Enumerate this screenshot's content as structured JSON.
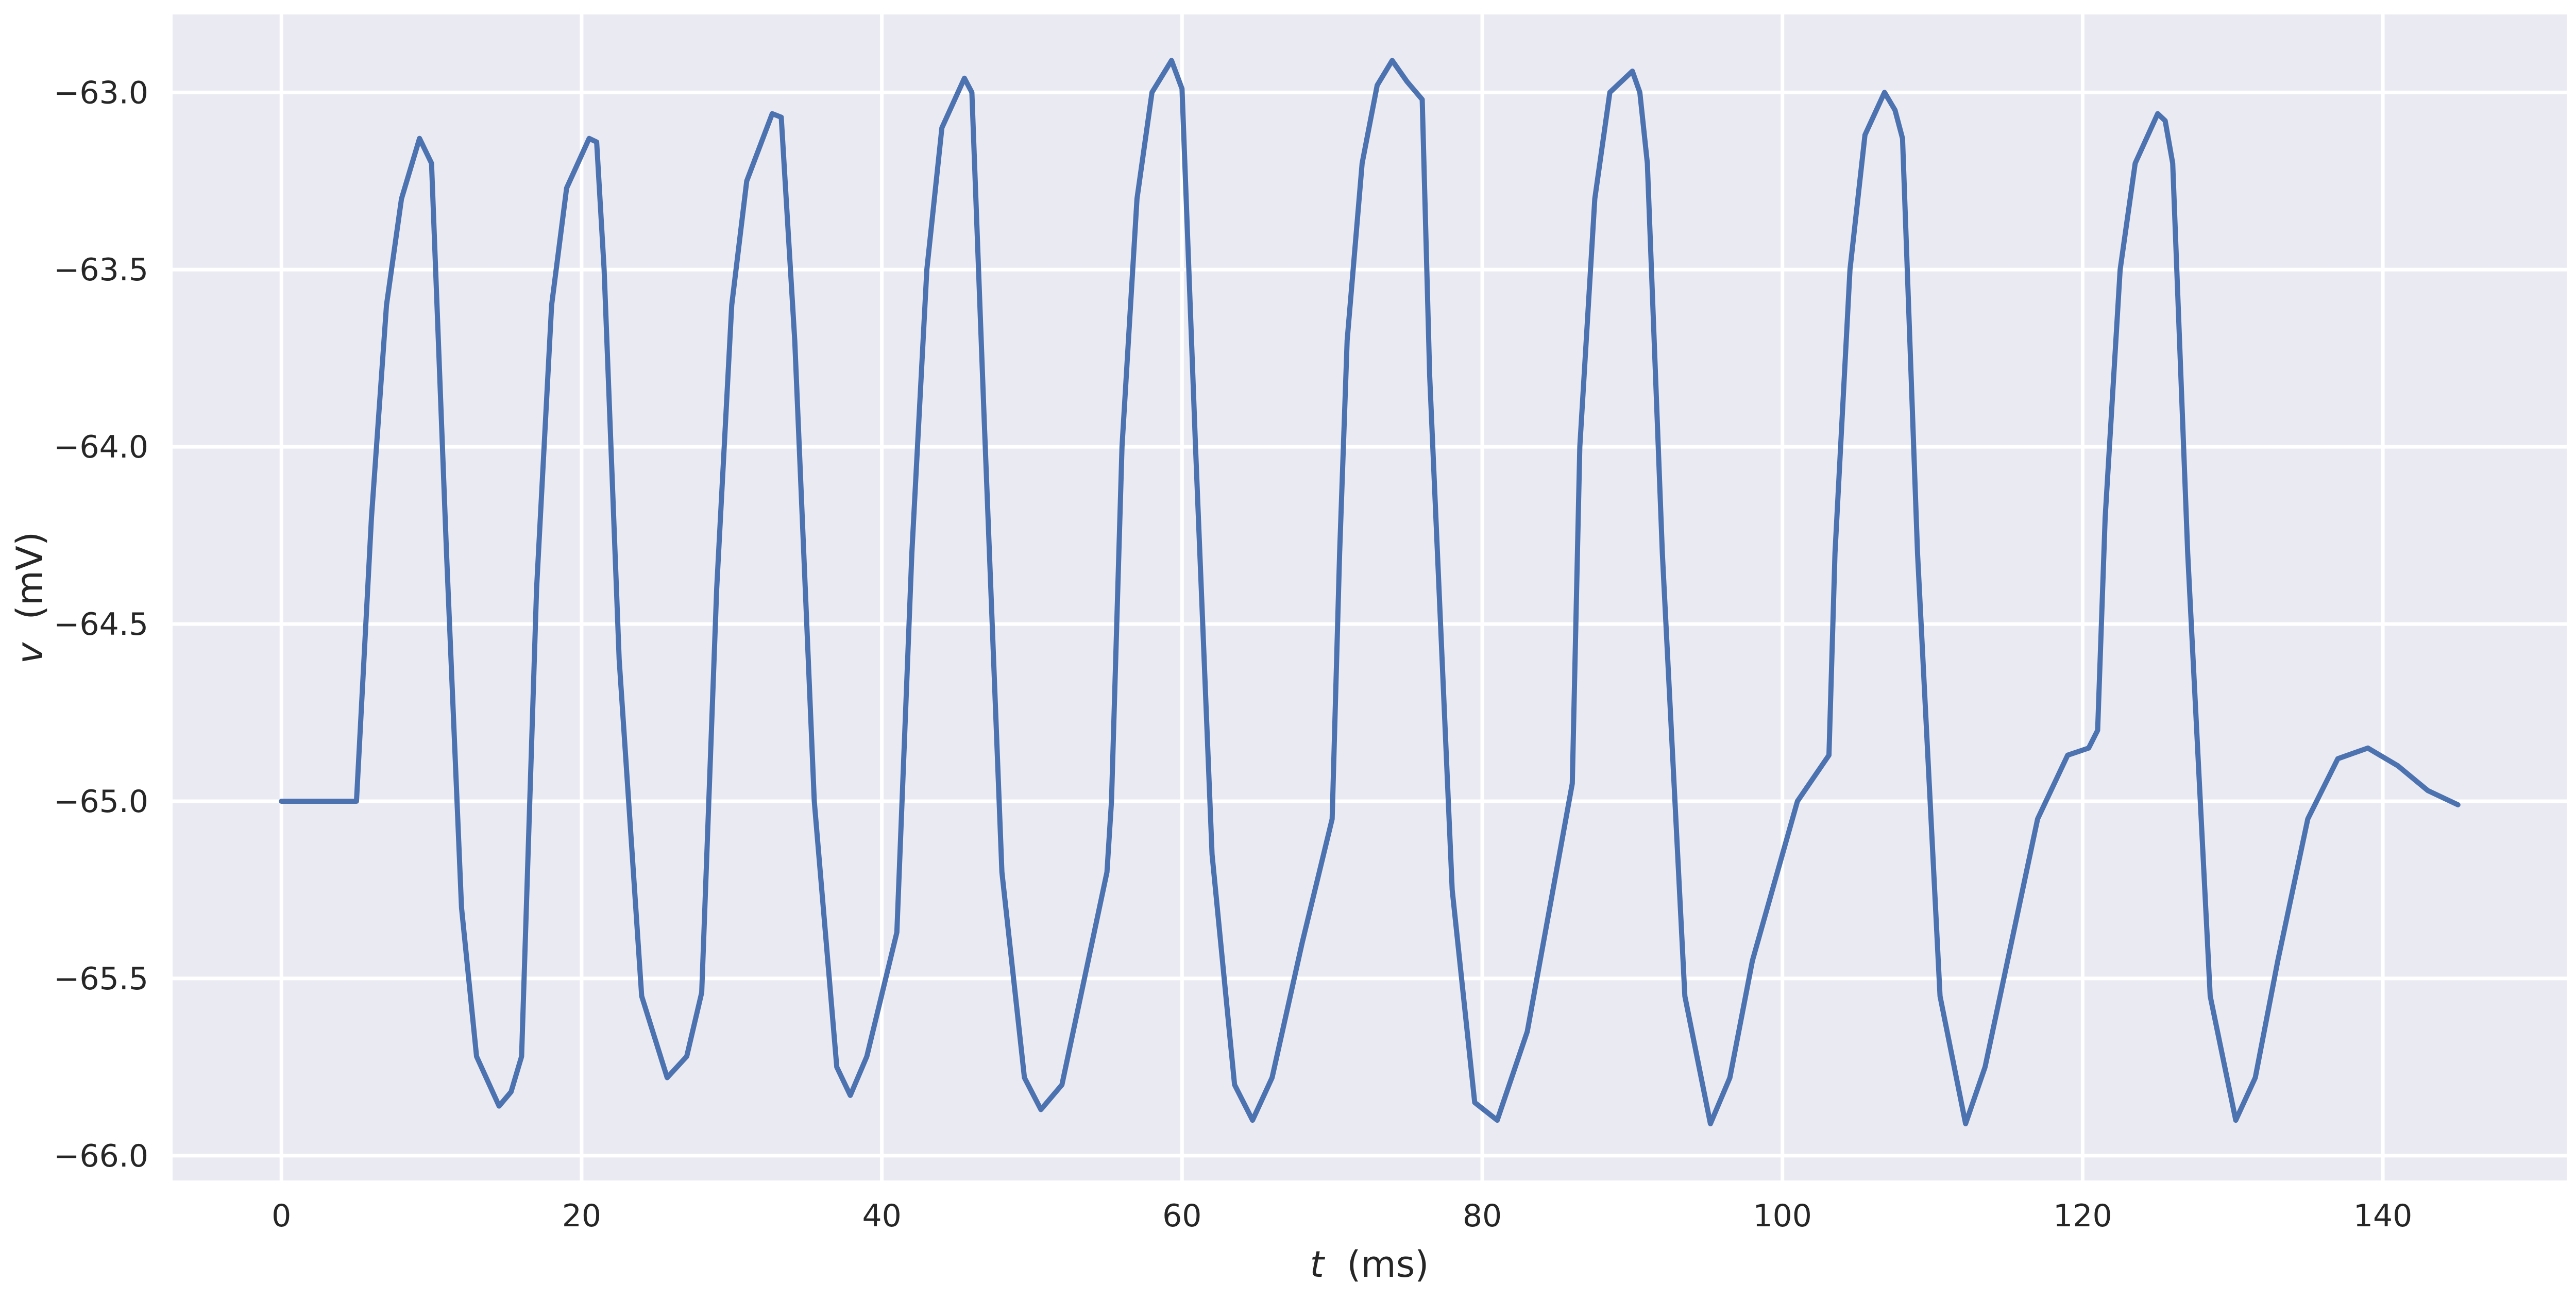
{
  "chart_data": {
    "type": "line",
    "title": "",
    "xlabel": {
      "symbol": "t",
      "unit": "(ms)"
    },
    "ylabel": {
      "symbol": "v",
      "unit": "(mV)"
    },
    "xlim": [
      -7.25,
      152.25
    ],
    "ylim": [
      -66.07,
      -62.78
    ],
    "xticks": [
      0,
      20,
      40,
      60,
      80,
      100,
      120,
      140
    ],
    "xtick_labels": [
      "0",
      "20",
      "40",
      "60",
      "80",
      "100",
      "120",
      "140"
    ],
    "yticks": [
      -63.0,
      -63.5,
      -64.0,
      -64.5,
      -65.0,
      -65.5,
      -66.0
    ],
    "ytick_labels": [
      "−63.0",
      "−63.5",
      "−64.0",
      "−64.5",
      "−65.0",
      "−65.5",
      "−66.0"
    ],
    "grid": true,
    "legend": "none",
    "colors": {
      "background": "#eaeaf2",
      "grid": "#ffffff",
      "line": "#4c72b0",
      "text": "#262626"
    },
    "series": [
      {
        "color": "#4c72b0",
        "x": [
          0,
          5,
          6,
          7,
          8,
          9.2,
          10,
          11,
          12,
          13,
          14.5,
          15.3,
          16,
          17,
          18,
          19,
          20.5,
          21,
          21.5,
          22.5,
          24,
          25.7,
          27,
          28,
          29,
          30,
          31,
          32.7,
          33.3,
          34.2,
          35.5,
          37,
          37.9,
          39,
          41,
          42,
          43,
          44,
          45.5,
          46,
          46.8,
          48,
          49.5,
          50.6,
          52,
          55,
          55.3,
          56,
          57,
          58,
          59.3,
          60,
          60.9,
          62,
          63.5,
          64.7,
          66,
          68,
          70,
          70.5,
          71,
          72,
          73,
          74,
          75,
          76,
          76.5,
          78,
          79.5,
          81,
          83,
          86,
          86.5,
          87.5,
          88.5,
          90,
          90.5,
          91,
          92,
          93.5,
          95.2,
          96.5,
          98,
          101,
          103.1,
          103.5,
          104.5,
          105.5,
          106.8,
          107.5,
          108,
          109,
          110.5,
          112.2,
          113.5,
          115,
          117,
          119,
          120.4,
          121,
          121.5,
          122.5,
          123.5,
          125,
          125.5,
          126,
          127,
          128.5,
          130.2,
          131.5,
          133,
          135,
          137,
          139,
          141,
          143,
          145
        ],
        "y": [
          -65.0,
          -65.0,
          -64.2,
          -63.6,
          -63.3,
          -63.13,
          -63.2,
          -64.3,
          -65.3,
          -65.72,
          -65.86,
          -65.82,
          -65.72,
          -64.4,
          -63.6,
          -63.27,
          -63.13,
          -63.14,
          -63.5,
          -64.6,
          -65.55,
          -65.78,
          -65.72,
          -65.54,
          -64.4,
          -63.6,
          -63.25,
          -63.06,
          -63.07,
          -63.7,
          -65.0,
          -65.75,
          -65.83,
          -65.72,
          -65.37,
          -64.3,
          -63.5,
          -63.1,
          -62.96,
          -63.0,
          -63.9,
          -65.2,
          -65.78,
          -65.87,
          -65.8,
          -65.2,
          -65.0,
          -64.0,
          -63.3,
          -63.0,
          -62.91,
          -62.99,
          -64.0,
          -65.15,
          -65.8,
          -65.9,
          -65.78,
          -65.4,
          -65.05,
          -64.3,
          -63.7,
          -63.2,
          -62.98,
          -62.91,
          -62.97,
          -63.02,
          -63.8,
          -65.25,
          -65.85,
          -65.9,
          -65.65,
          -64.95,
          -64.0,
          -63.3,
          -63.0,
          -62.94,
          -63.0,
          -63.2,
          -64.3,
          -65.55,
          -65.91,
          -65.78,
          -65.45,
          -65.0,
          -64.87,
          -64.3,
          -63.5,
          -63.12,
          -63.0,
          -63.05,
          -63.13,
          -64.3,
          -65.55,
          -65.91,
          -65.75,
          -65.45,
          -65.05,
          -64.87,
          -64.85,
          -64.8,
          -64.2,
          -63.5,
          -63.2,
          -63.06,
          -63.08,
          -63.2,
          -64.3,
          -65.55,
          -65.9,
          -65.78,
          -65.45,
          -65.05,
          -64.88,
          -64.85,
          -64.9,
          -64.97,
          -65.01
        ]
      }
    ]
  }
}
